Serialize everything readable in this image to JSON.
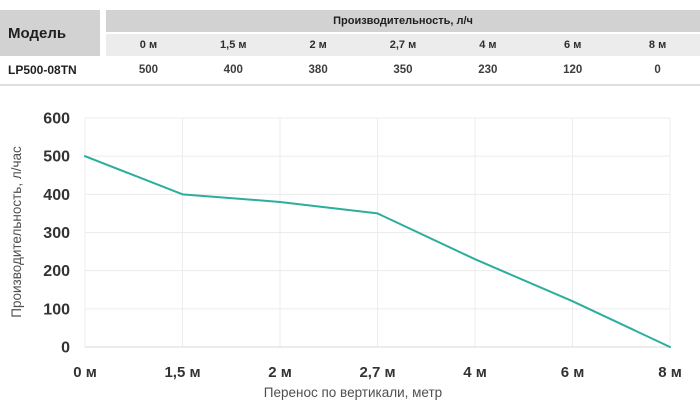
{
  "table": {
    "model_header": "Модель",
    "band_header": "Производительность, л/ч",
    "columns": [
      "0 м",
      "1,5 м",
      "2 м",
      "2,7 м",
      "4 м",
      "6 м",
      "8 м"
    ],
    "rows": [
      {
        "model": "LP500-08TN",
        "values": [
          "500",
          "400",
          "380",
          "350",
          "230",
          "120",
          "0"
        ]
      }
    ]
  },
  "chart_data": {
    "type": "line",
    "categories": [
      "0 м",
      "1,5 м",
      "2 м",
      "2,7 м",
      "4 м",
      "6 м",
      "8 м"
    ],
    "values": [
      500,
      400,
      380,
      350,
      230,
      120,
      0
    ],
    "title": "",
    "xlabel": "Перенос по вертикали, метр",
    "ylabel": "Производительность,  л/час",
    "ylim": [
      0,
      600
    ],
    "yticks": [
      0,
      100,
      200,
      300,
      400,
      500,
      600
    ],
    "grid": true,
    "legend": "none",
    "line_color": "#2bae9b"
  },
  "colors": {
    "line": "#2bae9b",
    "grid": "#ececec",
    "zero_line": "#d9d9d9",
    "band_bg": "#d2d2d2",
    "subhead_bg": "#ececec",
    "separator": "#dfdfdf"
  }
}
